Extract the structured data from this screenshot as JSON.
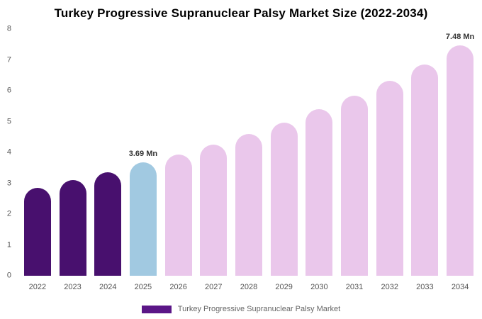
{
  "legend": {
    "label": "Turkey Progressive Supranuclear Palsy Market",
    "swatch_color": "#5b1687"
  },
  "chart_data": {
    "type": "bar",
    "title": "Turkey Progressive Supranuclear Palsy Market Size (2022-2034)",
    "categories": [
      "2022",
      "2023",
      "2024",
      "2025",
      "2026",
      "2027",
      "2028",
      "2029",
      "2030",
      "2031",
      "2032",
      "2033",
      "2034"
    ],
    "values": [
      2.85,
      3.1,
      3.35,
      3.69,
      3.92,
      4.25,
      4.6,
      4.97,
      5.4,
      5.85,
      6.32,
      6.85,
      7.48
    ],
    "bar_roles": [
      "historical",
      "historical",
      "historical",
      "estimate",
      "forecast",
      "forecast",
      "forecast",
      "forecast",
      "forecast",
      "forecast",
      "forecast",
      "forecast",
      "forecast"
    ],
    "series_colors": {
      "historical": "#48106e",
      "estimate": "#a1c9e1",
      "forecast": "#eac7eb"
    },
    "annotations": [
      {
        "category": "2025",
        "label": "3.69 Mn"
      },
      {
        "category": "2034",
        "label": "7.48 Mn"
      }
    ],
    "xlabel": "",
    "ylabel": "",
    "ylim": [
      0,
      8
    ],
    "y_ticks": [
      0,
      1,
      2,
      3,
      4,
      5,
      6,
      7,
      8
    ],
    "grid": false,
    "legend_position": "bottom"
  }
}
